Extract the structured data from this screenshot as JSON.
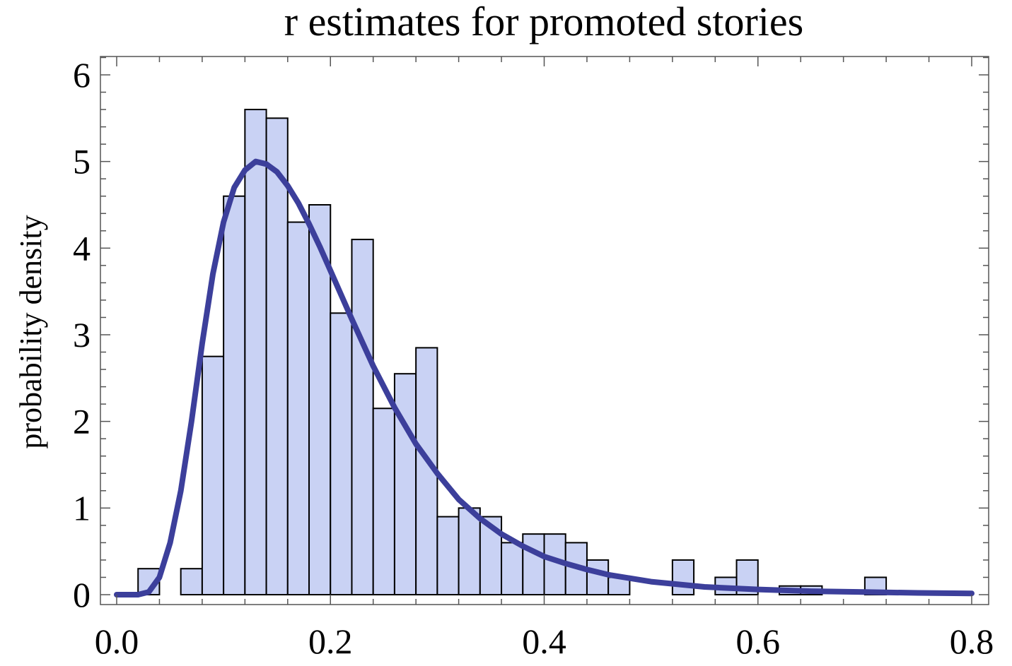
{
  "chart_data": {
    "type": "histogram",
    "title": "r estimates for promoted stories",
    "xlabel": "",
    "ylabel": "probability density",
    "xlim": [
      0.0,
      0.8
    ],
    "ylim": [
      0,
      6.2
    ],
    "x_ticks": [
      "0.0",
      "0.2",
      "0.4",
      "0.6",
      "0.8"
    ],
    "y_ticks": [
      "0",
      "1",
      "2",
      "3",
      "4",
      "5",
      "6"
    ],
    "grid": false,
    "bin_width": 0.02,
    "bars": [
      {
        "x0": 0.02,
        "x1": 0.04,
        "value": 0.3
      },
      {
        "x0": 0.06,
        "x1": 0.08,
        "value": 0.3
      },
      {
        "x0": 0.08,
        "x1": 0.1,
        "value": 2.75
      },
      {
        "x0": 0.1,
        "x1": 0.12,
        "value": 4.6
      },
      {
        "x0": 0.12,
        "x1": 0.14,
        "value": 5.6
      },
      {
        "x0": 0.14,
        "x1": 0.16,
        "value": 5.5
      },
      {
        "x0": 0.16,
        "x1": 0.18,
        "value": 4.3
      },
      {
        "x0": 0.18,
        "x1": 0.2,
        "value": 4.5
      },
      {
        "x0": 0.2,
        "x1": 0.22,
        "value": 3.25
      },
      {
        "x0": 0.22,
        "x1": 0.24,
        "value": 4.1
      },
      {
        "x0": 0.24,
        "x1": 0.26,
        "value": 2.15
      },
      {
        "x0": 0.26,
        "x1": 0.28,
        "value": 2.55
      },
      {
        "x0": 0.28,
        "x1": 0.3,
        "value": 2.85
      },
      {
        "x0": 0.3,
        "x1": 0.32,
        "value": 0.9
      },
      {
        "x0": 0.32,
        "x1": 0.34,
        "value": 1.0
      },
      {
        "x0": 0.34,
        "x1": 0.36,
        "value": 0.9
      },
      {
        "x0": 0.36,
        "x1": 0.38,
        "value": 0.6
      },
      {
        "x0": 0.38,
        "x1": 0.4,
        "value": 0.7
      },
      {
        "x0": 0.4,
        "x1": 0.42,
        "value": 0.7
      },
      {
        "x0": 0.42,
        "x1": 0.44,
        "value": 0.6
      },
      {
        "x0": 0.44,
        "x1": 0.46,
        "value": 0.4
      },
      {
        "x0": 0.46,
        "x1": 0.48,
        "value": 0.2
      },
      {
        "x0": 0.52,
        "x1": 0.54,
        "value": 0.4
      },
      {
        "x0": 0.56,
        "x1": 0.58,
        "value": 0.2
      },
      {
        "x0": 0.58,
        "x1": 0.6,
        "value": 0.4
      },
      {
        "x0": 0.62,
        "x1": 0.64,
        "value": 0.1
      },
      {
        "x0": 0.64,
        "x1": 0.66,
        "value": 0.1
      },
      {
        "x0": 0.7,
        "x1": 0.72,
        "value": 0.2
      }
    ],
    "fit_curve": {
      "x": [
        0.0,
        0.02,
        0.03,
        0.04,
        0.05,
        0.06,
        0.07,
        0.08,
        0.09,
        0.1,
        0.11,
        0.12,
        0.13,
        0.14,
        0.15,
        0.16,
        0.17,
        0.18,
        0.19,
        0.2,
        0.22,
        0.24,
        0.26,
        0.28,
        0.3,
        0.32,
        0.34,
        0.36,
        0.38,
        0.4,
        0.42,
        0.44,
        0.46,
        0.48,
        0.5,
        0.55,
        0.6,
        0.65,
        0.7,
        0.75,
        0.8
      ],
      "y": [
        0.0,
        0.0,
        0.03,
        0.2,
        0.6,
        1.2,
        2.0,
        2.9,
        3.7,
        4.3,
        4.7,
        4.9,
        5.0,
        4.97,
        4.88,
        4.72,
        4.52,
        4.28,
        4.02,
        3.74,
        3.18,
        2.64,
        2.16,
        1.74,
        1.4,
        1.1,
        0.88,
        0.7,
        0.56,
        0.44,
        0.36,
        0.29,
        0.23,
        0.19,
        0.15,
        0.09,
        0.06,
        0.04,
        0.03,
        0.02,
        0.015
      ]
    },
    "colors": {
      "bar_fill": "#c9d2f4",
      "bar_stroke": "#000000",
      "curve": "#3c3f9b",
      "frame": "#555555"
    }
  }
}
